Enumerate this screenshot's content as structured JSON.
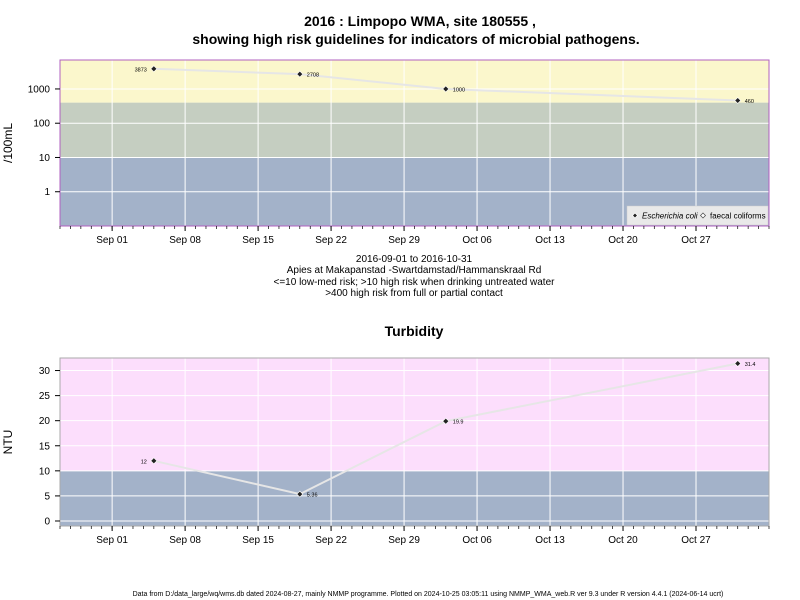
{
  "chart_data": [
    {
      "type": "line",
      "title_line1": "2016 : Limpopo WMA, site 180555 ,",
      "title_line2": "showing high risk guidelines for indicators of microbial pathogens.",
      "ylabel": "/100mL",
      "yscale": "log",
      "ylim": [
        0.1,
        7000
      ],
      "yticks": [
        1,
        10,
        100,
        1000
      ],
      "ytick_labels": [
        "1",
        "10",
        "100",
        "1000"
      ],
      "xlim": [
        "2016-08-27",
        "2016-11-03"
      ],
      "xticks": [
        "2016-09-01",
        "2016-09-08",
        "2016-09-15",
        "2016-09-22",
        "2016-09-29",
        "2016-10-06",
        "2016-10-13",
        "2016-10-20",
        "2016-10-27"
      ],
      "xtick_labels": [
        "Sep 01",
        "Sep 08",
        "Sep 15",
        "Sep 22",
        "Sep 29",
        "Oct 06",
        "Oct 13",
        "Oct 20",
        "Oct 27"
      ],
      "bands": [
        {
          "from": 0.1,
          "to": 10,
          "color": "#a3b2c9"
        },
        {
          "from": 10,
          "to": 400,
          "color": "#c5cec1"
        },
        {
          "from": 400,
          "to": 7000,
          "color": "#fbf7cc"
        }
      ],
      "series": [
        {
          "name": "Escherichia coli",
          "x": [
            "2016-09-05",
            "2016-09-19",
            "2016-10-03",
            "2016-10-31"
          ],
          "values": [
            3873,
            2708,
            1000,
            460
          ],
          "labels": [
            "3873",
            "2708",
            "1000",
            "460"
          ]
        }
      ],
      "legend": [
        "Escherichia coli",
        "faecal coliforms"
      ],
      "legend_position": "bottom-right",
      "grid": true,
      "subtitle_lines": [
        "2016-09-01 to 2016-10-31",
        "Apies at Makapanstad -Swartdamstad/Hammanskraal Rd",
        "<=10 low-med risk; >10 high risk when drinking untreated water",
        ">400 high risk from full or partial contact"
      ]
    },
    {
      "type": "line",
      "title": "Turbidity",
      "ylabel": "NTU",
      "ylim": [
        -1,
        32.5
      ],
      "yticks": [
        0,
        5,
        10,
        15,
        20,
        25,
        30
      ],
      "ytick_labels": [
        "0",
        "5",
        "10",
        "15",
        "20",
        "25",
        "30"
      ],
      "xlim": [
        "2016-08-27",
        "2016-11-03"
      ],
      "xticks": [
        "2016-09-01",
        "2016-09-08",
        "2016-09-15",
        "2016-09-22",
        "2016-09-29",
        "2016-10-06",
        "2016-10-13",
        "2016-10-20",
        "2016-10-27"
      ],
      "xtick_labels": [
        "Sep 01",
        "Sep 08",
        "Sep 15",
        "Sep 22",
        "Sep 29",
        "Oct 06",
        "Oct 13",
        "Oct 20",
        "Oct 27"
      ],
      "bands": [
        {
          "from": -1,
          "to": 10,
          "color": "#a3b2c9"
        },
        {
          "from": 10,
          "to": 32.5,
          "color": "#fcdefc"
        }
      ],
      "series": [
        {
          "x": [
            "2016-09-05",
            "2016-09-19",
            "2016-10-03",
            "2016-10-31"
          ],
          "values": [
            12,
            5.36,
            19.9,
            31.4
          ],
          "labels": [
            "12",
            "5.36",
            "19.9",
            "31.4"
          ]
        }
      ],
      "grid": true
    }
  ],
  "footer": "Data from D:/data_large/wq/wms.db dated 2024-08-27, mainly NMMP programme. Plotted on 2024-10-25 03:05:11 using NMMP_WMA_web.R ver 9.3 under R version 4.4.1 (2024-06-14 ucrt)"
}
